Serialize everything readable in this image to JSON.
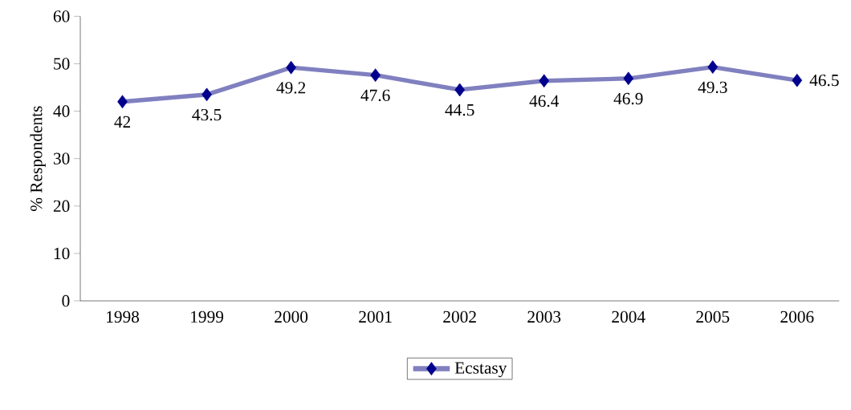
{
  "chart_data": {
    "type": "line",
    "ylabel": "% Respondents",
    "categories": [
      "1998",
      "1999",
      "2000",
      "2001",
      "2002",
      "2003",
      "2004",
      "2005",
      "2006"
    ],
    "series": [
      {
        "name": "Ecstasy",
        "color": "#8080c0",
        "values": [
          42,
          43.5,
          49.2,
          47.6,
          44.5,
          46.4,
          46.9,
          49.3,
          46.5
        ]
      }
    ],
    "ylim": [
      0,
      60
    ],
    "yticks": [
      0,
      10,
      20,
      30,
      40,
      50,
      60
    ],
    "marker": "diamond",
    "data_labels": true,
    "legend": "bottom",
    "grid": false
  }
}
